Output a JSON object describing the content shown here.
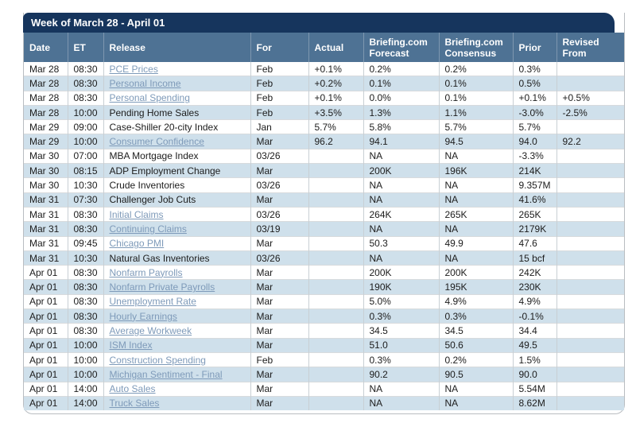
{
  "calendar": {
    "title": "Week of March 28 - April 01",
    "colors": {
      "title_bar": "#16355d",
      "header_bg": "#4e7294",
      "row_alt": "#cfe0eb",
      "row": "#ffffff",
      "link": "#7e9ab9",
      "text": "#1c1c1c"
    },
    "columns": [
      "Date",
      "ET",
      "Release",
      "For",
      "Actual",
      "Briefing.com Forecast",
      "Briefing.com Consensus",
      "Prior",
      "Revised From"
    ],
    "rows": [
      {
        "date": "Mar 28",
        "et": "08:30",
        "release": "PCE Prices",
        "is_link": true,
        "for": "Feb",
        "actual": "+0.1%",
        "forecast": "0.2%",
        "consensus": "0.2%",
        "prior": "0.3%",
        "revised_from": ""
      },
      {
        "date": "Mar 28",
        "et": "08:30",
        "release": "Personal Income",
        "is_link": true,
        "for": "Feb",
        "actual": "+0.2%",
        "forecast": "0.1%",
        "consensus": "0.1%",
        "prior": "0.5%",
        "revised_from": ""
      },
      {
        "date": "Mar 28",
        "et": "08:30",
        "release": "Personal Spending",
        "is_link": true,
        "for": "Feb",
        "actual": "+0.1%",
        "forecast": "0.0%",
        "consensus": "0.1%",
        "prior": "+0.1%",
        "revised_from": "+0.5%"
      },
      {
        "date": "Mar 28",
        "et": "10:00",
        "release": "Pending Home Sales",
        "is_link": false,
        "for": "Feb",
        "actual": "+3.5%",
        "forecast": "1.3%",
        "consensus": "1.1%",
        "prior": "-3.0%",
        "revised_from": "-2.5%"
      },
      {
        "date": "Mar 29",
        "et": "09:00",
        "release": "Case-Shiller 20-city Index",
        "is_link": false,
        "for": "Jan",
        "actual": "5.7%",
        "forecast": "5.8%",
        "consensus": "5.7%",
        "prior": "5.7%",
        "revised_from": ""
      },
      {
        "date": "Mar 29",
        "et": "10:00",
        "release": "Consumer Confidence",
        "is_link": true,
        "for": "Mar",
        "actual": "96.2",
        "forecast": "94.1",
        "consensus": "94.5",
        "prior": "94.0",
        "revised_from": "92.2"
      },
      {
        "date": "Mar 30",
        "et": "07:00",
        "release": "MBA Mortgage Index",
        "is_link": false,
        "for": "03/26",
        "actual": "",
        "forecast": "NA",
        "consensus": "NA",
        "prior": "-3.3%",
        "revised_from": ""
      },
      {
        "date": "Mar 30",
        "et": "08:15",
        "release": "ADP Employment Change",
        "is_link": false,
        "for": "Mar",
        "actual": "",
        "forecast": "200K",
        "consensus": "196K",
        "prior": "214K",
        "revised_from": ""
      },
      {
        "date": "Mar 30",
        "et": "10:30",
        "release": "Crude Inventories",
        "is_link": false,
        "for": "03/26",
        "actual": "",
        "forecast": "NA",
        "consensus": "NA",
        "prior": "9.357M",
        "revised_from": ""
      },
      {
        "date": "Mar 31",
        "et": "07:30",
        "release": "Challenger Job Cuts",
        "is_link": false,
        "for": "Mar",
        "actual": "",
        "forecast": "NA",
        "consensus": "NA",
        "prior": "41.6%",
        "revised_from": ""
      },
      {
        "date": "Mar 31",
        "et": "08:30",
        "release": "Initial Claims",
        "is_link": true,
        "for": "03/26",
        "actual": "",
        "forecast": "264K",
        "consensus": "265K",
        "prior": "265K",
        "revised_from": ""
      },
      {
        "date": "Mar 31",
        "et": "08:30",
        "release": "Continuing Claims",
        "is_link": true,
        "for": "03/19",
        "actual": "",
        "forecast": "NA",
        "consensus": "NA",
        "prior": "2179K",
        "revised_from": ""
      },
      {
        "date": "Mar 31",
        "et": "09:45",
        "release": "Chicago PMI",
        "is_link": true,
        "for": "Mar",
        "actual": "",
        "forecast": "50.3",
        "consensus": "49.9",
        "prior": "47.6",
        "revised_from": ""
      },
      {
        "date": "Mar 31",
        "et": "10:30",
        "release": "Natural Gas Inventories",
        "is_link": false,
        "for": "03/26",
        "actual": "",
        "forecast": "NA",
        "consensus": "NA",
        "prior": "15 bcf",
        "revised_from": ""
      },
      {
        "date": "Apr 01",
        "et": "08:30",
        "release": "Nonfarm Payrolls",
        "is_link": true,
        "for": "Mar",
        "actual": "",
        "forecast": "200K",
        "consensus": "200K",
        "prior": "242K",
        "revised_from": ""
      },
      {
        "date": "Apr 01",
        "et": "08:30",
        "release": "Nonfarm Private Payrolls",
        "is_link": true,
        "for": "Mar",
        "actual": "",
        "forecast": "190K",
        "consensus": "195K",
        "prior": "230K",
        "revised_from": ""
      },
      {
        "date": "Apr 01",
        "et": "08:30",
        "release": "Unemployment Rate",
        "is_link": true,
        "for": "Mar",
        "actual": "",
        "forecast": "5.0%",
        "consensus": "4.9%",
        "prior": "4.9%",
        "revised_from": ""
      },
      {
        "date": "Apr 01",
        "et": "08:30",
        "release": "Hourly Earnings",
        "is_link": true,
        "for": "Mar",
        "actual": "",
        "forecast": "0.3%",
        "consensus": "0.3%",
        "prior": "-0.1%",
        "revised_from": ""
      },
      {
        "date": "Apr 01",
        "et": "08:30",
        "release": "Average Workweek",
        "is_link": true,
        "for": "Mar",
        "actual": "",
        "forecast": "34.5",
        "consensus": "34.5",
        "prior": "34.4",
        "revised_from": ""
      },
      {
        "date": "Apr 01",
        "et": "10:00",
        "release": "ISM Index",
        "is_link": true,
        "for": "Mar",
        "actual": "",
        "forecast": "51.0",
        "consensus": "50.6",
        "prior": "49.5",
        "revised_from": ""
      },
      {
        "date": "Apr 01",
        "et": "10:00",
        "release": "Construction Spending",
        "is_link": true,
        "for": "Feb",
        "actual": "",
        "forecast": "0.3%",
        "consensus": "0.2%",
        "prior": "1.5%",
        "revised_from": ""
      },
      {
        "date": "Apr 01",
        "et": "10:00",
        "release": "Michigan Sentiment - Final",
        "is_link": true,
        "for": "Mar",
        "actual": "",
        "forecast": "90.2",
        "consensus": "90.5",
        "prior": "90.0",
        "revised_from": ""
      },
      {
        "date": "Apr 01",
        "et": "14:00",
        "release": "Auto Sales",
        "is_link": true,
        "for": "Mar",
        "actual": "",
        "forecast": "NA",
        "consensus": "NA",
        "prior": "5.54M",
        "revised_from": ""
      },
      {
        "date": "Apr 01",
        "et": "14:00",
        "release": "Truck Sales",
        "is_link": true,
        "for": "Mar",
        "actual": "",
        "forecast": "NA",
        "consensus": "NA",
        "prior": "8.62M",
        "revised_from": ""
      }
    ]
  }
}
